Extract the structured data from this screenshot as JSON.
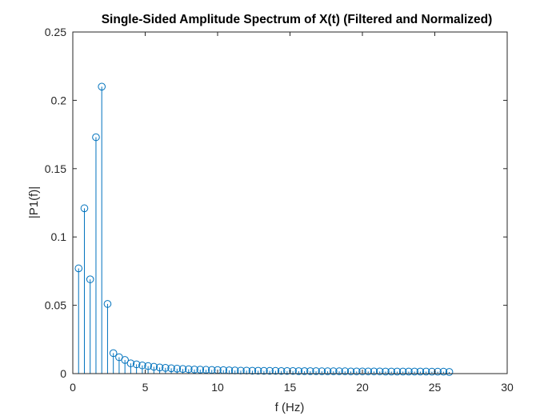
{
  "chart_data": {
    "type": "stem",
    "title": "Single-Sided Amplitude Spectrum of X(t) (Filtered and Normalized)",
    "xlabel": "f (Hz)",
    "ylabel": "|P1(f)|",
    "xlim": [
      0,
      30
    ],
    "ylim": [
      0,
      0.25
    ],
    "xticks": [
      "0",
      "5",
      "10",
      "15",
      "20",
      "25",
      "30"
    ],
    "yticks": [
      "0",
      "0.05",
      "0.1",
      "0.15",
      "0.2",
      "0.25"
    ],
    "grid": false,
    "series_color": "#0072BD",
    "x": [
      0.4,
      0.8,
      1.2,
      1.6,
      2.0,
      2.4,
      2.8,
      3.2,
      3.6,
      4.0,
      4.4,
      4.8,
      5.2,
      5.6,
      6.0,
      6.4,
      6.8,
      7.2,
      7.6,
      8.0,
      8.4,
      8.8,
      9.2,
      9.6,
      10.0,
      10.4,
      10.8,
      11.2,
      11.6,
      12.0,
      12.4,
      12.8,
      13.2,
      13.6,
      14.0,
      14.4,
      14.8,
      15.2,
      15.6,
      16.0,
      16.4,
      16.8,
      17.2,
      17.6,
      18.0,
      18.4,
      18.8,
      19.2,
      19.6,
      20.0,
      20.4,
      20.8,
      21.2,
      21.6,
      22.0,
      22.4,
      22.8,
      23.2,
      23.6,
      24.0,
      24.4,
      24.8,
      25.2,
      25.6,
      26.0
    ],
    "y": [
      0.077,
      0.121,
      0.069,
      0.173,
      0.21,
      0.051,
      0.015,
      0.012,
      0.01,
      0.0075,
      0.0068,
      0.006,
      0.0055,
      0.005,
      0.0045,
      0.0042,
      0.0039,
      0.0036,
      0.0034,
      0.0032,
      0.003,
      0.0029,
      0.0028,
      0.0027,
      0.0026,
      0.0025,
      0.0024,
      0.0023,
      0.0022,
      0.0022,
      0.0021,
      0.0021,
      0.002,
      0.002,
      0.002,
      0.0019,
      0.0019,
      0.0019,
      0.0018,
      0.0018,
      0.0018,
      0.0018,
      0.0017,
      0.0017,
      0.0017,
      0.0017,
      0.0017,
      0.0016,
      0.0016,
      0.0016,
      0.0016,
      0.0016,
      0.0016,
      0.0015,
      0.0015,
      0.0015,
      0.0015,
      0.0015,
      0.0015,
      0.0015,
      0.0015,
      0.0014,
      0.0014,
      0.0014,
      0.0012
    ]
  }
}
